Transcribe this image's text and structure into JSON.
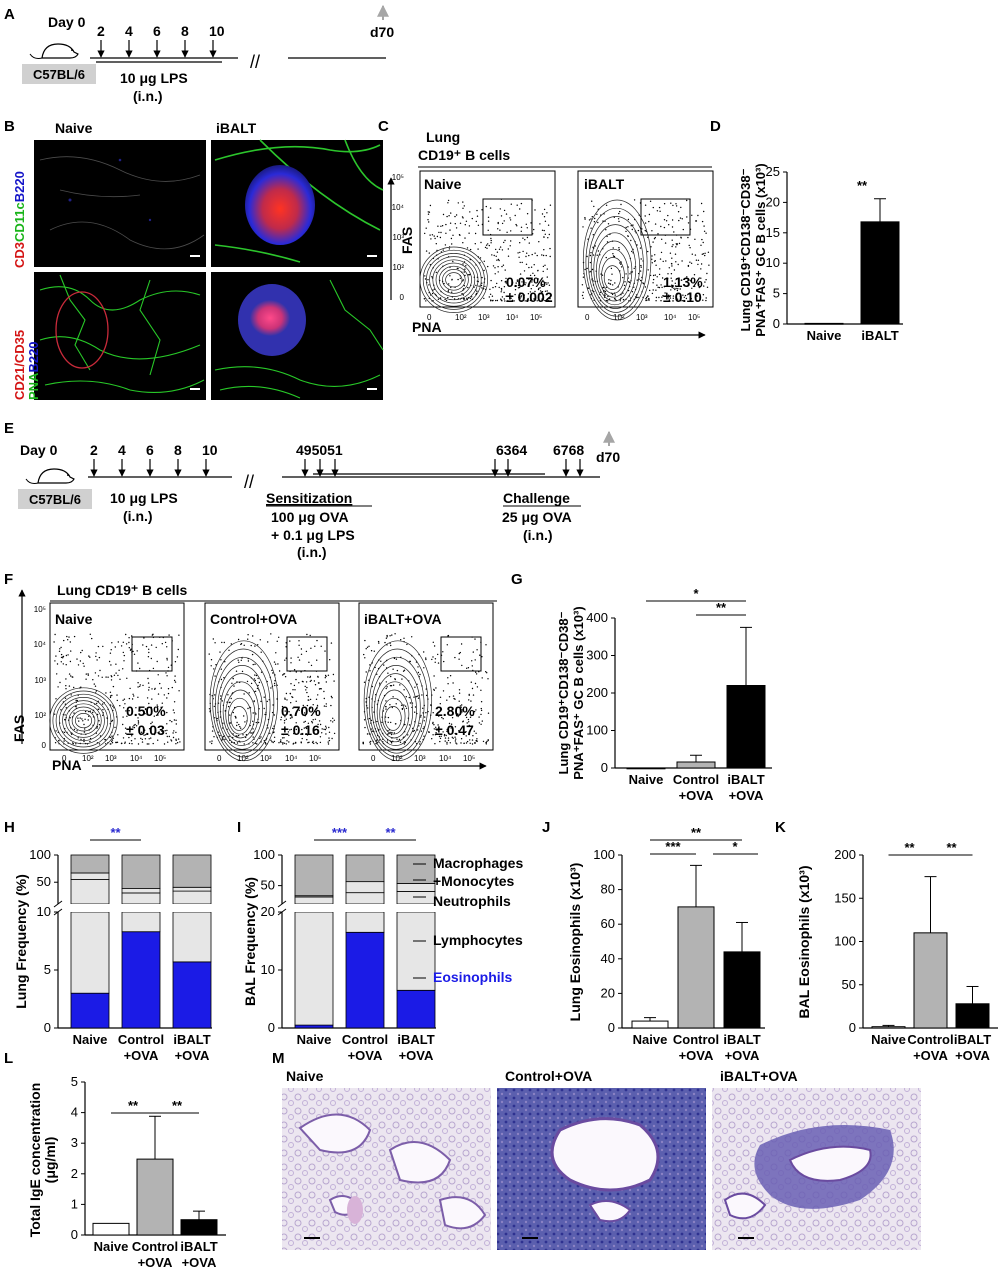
{
  "panel_letters": [
    "A",
    "B",
    "C",
    "D",
    "E",
    "F",
    "G",
    "H",
    "I",
    "J",
    "K",
    "L",
    "M"
  ],
  "common": {
    "naive": "Naive",
    "ibalt": "iBALT",
    "control_ova": "Control+OVA",
    "ibalt_ova": "iBALT+OVA",
    "control": "Control",
    "plus_ova": "+OVA",
    "fas": "FAS",
    "pna": "PNA",
    "c57": "C57BL/6"
  },
  "panelA": {
    "day0": "Day 0",
    "days": [
      "2",
      "4",
      "6",
      "8",
      "10"
    ],
    "d70": "d70",
    "lps": "10 μg LPS",
    "route": "(i.n.)",
    "break": "//"
  },
  "panelB": {
    "ylab1": [
      "CD3",
      "CD11c",
      "B220"
    ],
    "ylab2": [
      "CD21/CD35",
      "PNA",
      "B220"
    ]
  },
  "panelC": {
    "title1": "Lung",
    "title2": "CD19⁺ B cells",
    "naive_pct": "0.07%",
    "naive_sd": "± 0.002",
    "ibalt_pct": "1.13%",
    "ibalt_sd": "± 0.10",
    "yticks": [
      "10⁵",
      "10⁴",
      "10³",
      "10²",
      "0"
    ],
    "xticks": [
      "0",
      "10²",
      "10³",
      "10⁴",
      "10⁵"
    ]
  },
  "panelE": {
    "day0": "Day 0",
    "days1": [
      "2",
      "4",
      "6",
      "8",
      "10"
    ],
    "days2": "495051",
    "days3a": "6364",
    "days3b": "6768",
    "d70": "d70",
    "lps": "10 μg LPS",
    "route": "(i.n.)",
    "sens_title": "Sensitization",
    "sens_l1": "100 μg OVA",
    "sens_l2": "+ 0.1 μg LPS",
    "sens_l3": "(i.n.)",
    "chal_title": "Challenge",
    "chal_l1": "25 μg OVA",
    "chal_l2": "(i.n.)"
  },
  "panelF": {
    "title": "Lung CD19⁺ B cells",
    "pcts": [
      "0.50%",
      "0.70%",
      "2.80%"
    ],
    "sds": [
      "± 0.03",
      "± 0.16",
      "± 0.47"
    ]
  },
  "panelH_legend": {
    "macro1": "Macrophages",
    "macro2": "+Monocytes",
    "neut": "Neutrophils",
    "lymph": "Lymphocytes",
    "eos": "Eosinophils"
  },
  "panelM": {
    "labels": [
      "Naive",
      "Control+OVA",
      "iBALT+OVA"
    ]
  },
  "colors": {
    "black": "#000000",
    "gray_bar": "#b3b3b3",
    "light_bar": "#e6e6e6",
    "blue": "#1b1be6",
    "sig_blue": "#2a2ad0",
    "arrow_gray": "#a6a6a6",
    "c57_box": "#d0d0d0"
  },
  "chart_data": [
    {
      "id": "D",
      "type": "bar",
      "ylabel": "Lung CD19⁺CD138⁻CD38⁻ PNA⁺FAS⁺ GC B cells (x10³)",
      "categories": [
        "Naive",
        "iBALT"
      ],
      "values": [
        0.1,
        16.8
      ],
      "errors": [
        0,
        3.8
      ],
      "colors": [
        "#ffffff",
        "#000000"
      ],
      "ylim": [
        0,
        25
      ],
      "yticks": [
        0,
        5,
        10,
        15,
        20,
        25
      ],
      "significance": [
        "**"
      ]
    },
    {
      "id": "G",
      "type": "bar",
      "ylabel": "Lung CD19⁺CD138⁻CD38⁻ PNA⁺FAS⁺ GC B cells (x10³)",
      "categories": [
        "Naive",
        "Control +OVA",
        "iBALT +OVA"
      ],
      "values": [
        0,
        16,
        220
      ],
      "errors": [
        0,
        18,
        155
      ],
      "colors": [
        "#ffffff",
        "#b3b3b3",
        "#000000"
      ],
      "ylim": [
        0,
        400
      ],
      "yticks": [
        0,
        100,
        200,
        300,
        400
      ],
      "significance": [
        "*",
        "**"
      ]
    },
    {
      "id": "H",
      "type": "bar",
      "stacked": true,
      "ylabel": "Lung Frequency (%)",
      "categories": [
        "Naive",
        "Control +OVA",
        "iBALT +OVA"
      ],
      "series": [
        {
          "name": "Eosinophils",
          "values": [
            3,
            8.3,
            5.7
          ]
        },
        {
          "name": "Lymphocytes",
          "values": [
            52,
            22,
            28
          ]
        },
        {
          "name": "Neutrophils",
          "values": [
            12,
            8,
            7
          ]
        },
        {
          "name": "Macrophages +Monocytes",
          "values": [
            33,
            61.7,
            59.3
          ]
        }
      ],
      "yticks_lower": [
        0,
        5,
        10
      ],
      "yticks_upper": [
        50,
        100
      ],
      "significance": [
        "**"
      ]
    },
    {
      "id": "I",
      "type": "bar",
      "stacked": true,
      "ylabel": "BAL Frequency (%)",
      "categories": [
        "Naive",
        "Control +OVA",
        "iBALT +OVA"
      ],
      "series": [
        {
          "name": "Eosinophils",
          "values": [
            0.5,
            16.5,
            6.5
          ]
        },
        {
          "name": "Lymphocytes",
          "values": [
            31,
            22,
            34
          ]
        },
        {
          "name": "Neutrophils",
          "values": [
            2,
            18,
            13
          ]
        },
        {
          "name": "Macrophages +Monocytes",
          "values": [
            66.5,
            43.5,
            46.5
          ]
        }
      ],
      "yticks_lower": [
        0,
        10,
        20
      ],
      "yticks_upper": [
        50,
        100
      ],
      "significance": [
        "***",
        "**"
      ]
    },
    {
      "id": "J",
      "type": "bar",
      "ylabel": "Lung Eosinophils (x10³)",
      "categories": [
        "Naive",
        "Control +OVA",
        "iBALT +OVA"
      ],
      "values": [
        4,
        70,
        44
      ],
      "errors": [
        2,
        24,
        17
      ],
      "colors": [
        "#ffffff",
        "#b3b3b3",
        "#000000"
      ],
      "ylim": [
        0,
        100
      ],
      "yticks": [
        0,
        20,
        40,
        60,
        80,
        100
      ],
      "significance": [
        "**",
        "***",
        "*"
      ]
    },
    {
      "id": "K",
      "type": "bar",
      "ylabel": "BAL Eosinophils (x10³)",
      "categories": [
        "Naive",
        "Control +OVA",
        "iBALT +OVA"
      ],
      "values": [
        1.5,
        110,
        28
      ],
      "errors": [
        1.5,
        65,
        20
      ],
      "colors": [
        "#ffffff",
        "#b3b3b3",
        "#000000"
      ],
      "ylim": [
        0,
        200
      ],
      "yticks": [
        0,
        50,
        100,
        150,
        200
      ],
      "significance": [
        "**",
        "**"
      ]
    },
    {
      "id": "L",
      "type": "bar",
      "ylabel": "Total IgE concentration (μg/ml)",
      "categories": [
        "Naive",
        "Control +OVA",
        "iBALT +OVA"
      ],
      "values": [
        0.38,
        2.48,
        0.5
      ],
      "errors": [
        0,
        1.4,
        0.28
      ],
      "colors": [
        "#ffffff",
        "#b3b3b3",
        "#000000"
      ],
      "ylim": [
        0,
        5
      ],
      "yticks": [
        0,
        1,
        2,
        3,
        4,
        5
      ],
      "significance": [
        "**",
        "**"
      ]
    }
  ]
}
